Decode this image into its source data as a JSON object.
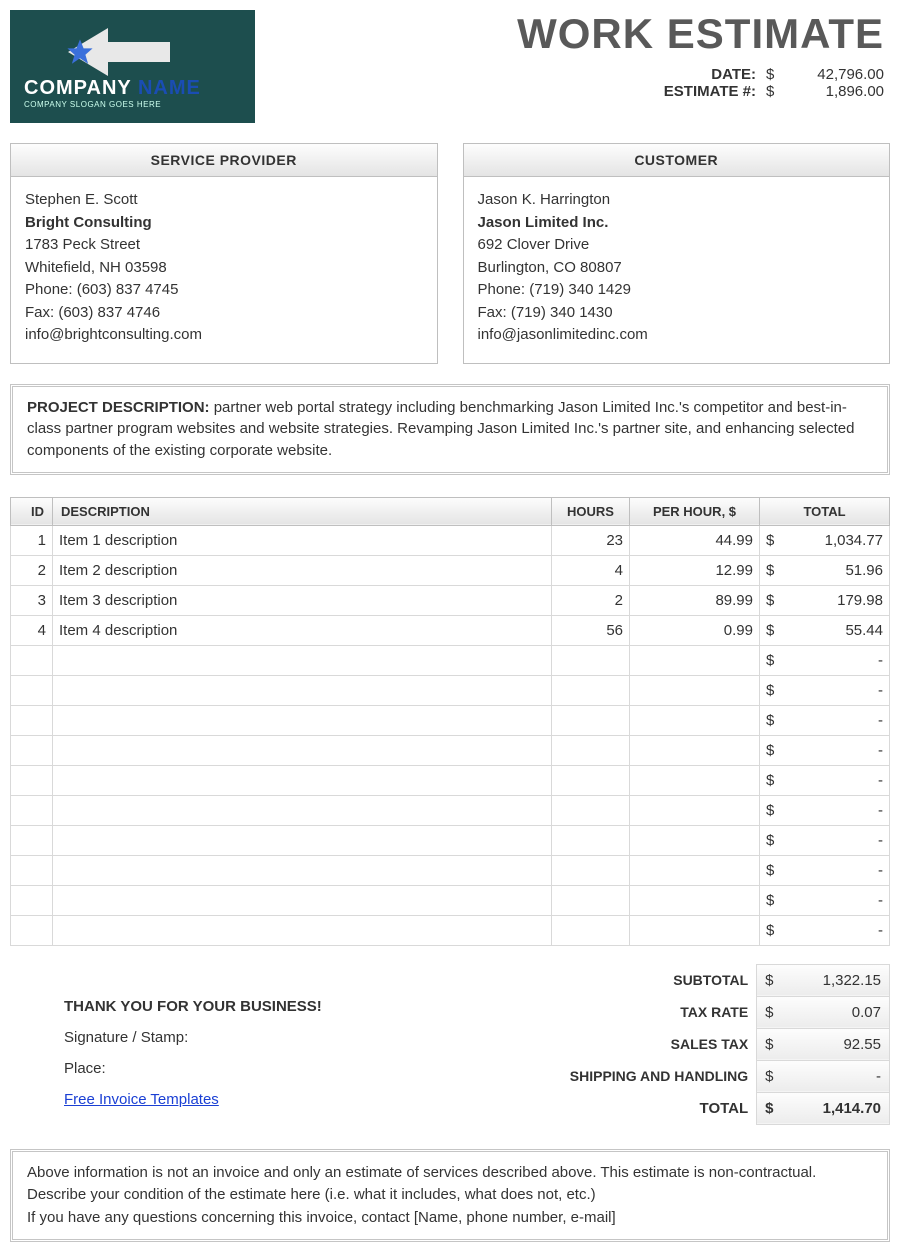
{
  "logo": {
    "company_word1": "COMPANY",
    "company_word2": "NAME",
    "slogan": "COMPANY SLOGAN GOES HERE",
    "bg_color": "#1d4e4e",
    "accent_color": "#1a4db3",
    "arrow_color": "#e8e8e8",
    "star_color": "#3a6fdb"
  },
  "header": {
    "title": "WORK ESTIMATE",
    "date_label": "DATE:",
    "date_currency": "$",
    "date_value": "42,796.00",
    "estimate_label": "ESTIMATE #:",
    "estimate_currency": "$",
    "estimate_value": "1,896.00"
  },
  "provider": {
    "heading": "SERVICE PROVIDER",
    "name": "Stephen E. Scott",
    "company": "Bright Consulting",
    "street": "1783 Peck Street",
    "city": "Whitefield, NH 03598",
    "phone": "Phone:  (603) 837 4745",
    "fax": "Fax: (603) 837 4746",
    "email": "info@brightconsulting.com"
  },
  "customer": {
    "heading": "CUSTOMER",
    "name": "Jason K. Harrington",
    "company": "Jason Limited Inc.",
    "street": "692 Clover Drive",
    "city": "Burlington, CO  80807",
    "phone": "Phone: (719) 340 1429",
    "fax": "Fax: (719) 340 1430",
    "email": "info@jasonlimitedinc.com"
  },
  "project": {
    "label": "PROJECT DESCRIPTION:",
    "text": "partner web portal strategy including benchmarking Jason Limited Inc.'s competitor and best-in-class partner program websites and website strategies. Revamping Jason Limited Inc.'s partner site, and enhancing selected components of the existing corporate website."
  },
  "table": {
    "headers": {
      "id": "ID",
      "desc": "DESCRIPTION",
      "hours": "HOURS",
      "rate": "PER HOUR, $",
      "total": "TOTAL"
    },
    "currency": "$",
    "dash": "-",
    "rows": [
      {
        "id": "1",
        "desc": "Item 1 description",
        "hours": "23",
        "rate": "44.99",
        "total": "1,034.77"
      },
      {
        "id": "2",
        "desc": "Item 2 description",
        "hours": "4",
        "rate": "12.99",
        "total": "51.96"
      },
      {
        "id": "3",
        "desc": "Item 3 description",
        "hours": "2",
        "rate": "89.99",
        "total": "179.98"
      },
      {
        "id": "4",
        "desc": "Item 4 description",
        "hours": "56",
        "rate": "0.99",
        "total": "55.44"
      }
    ],
    "empty_row_count": 10
  },
  "totals": {
    "subtotal_label": "SUBTOTAL",
    "subtotal": "1,322.15",
    "taxrate_label": "TAX RATE",
    "taxrate": "0.07",
    "salestax_label": "SALES TAX",
    "salestax": "92.55",
    "ship_label": "SHIPPING AND HANDLING",
    "ship": "-",
    "total_label": "TOTAL",
    "total": "1,414.70",
    "currency": "$"
  },
  "closing": {
    "thank": "THANK YOU FOR YOUR BUSINESS!",
    "signature": "Signature / Stamp:",
    "place": "Place:",
    "link": "Free Invoice Templates"
  },
  "footer": {
    "line1": "Above information is not an invoice and only an estimate of services described above. This estimate is non-contractual.",
    "line2": "Describe your condition of the estimate here (i.e. what it includes, what does not, etc.)",
    "line3": "If you have any questions concerning this invoice, contact [Name, phone number, e-mail]"
  }
}
